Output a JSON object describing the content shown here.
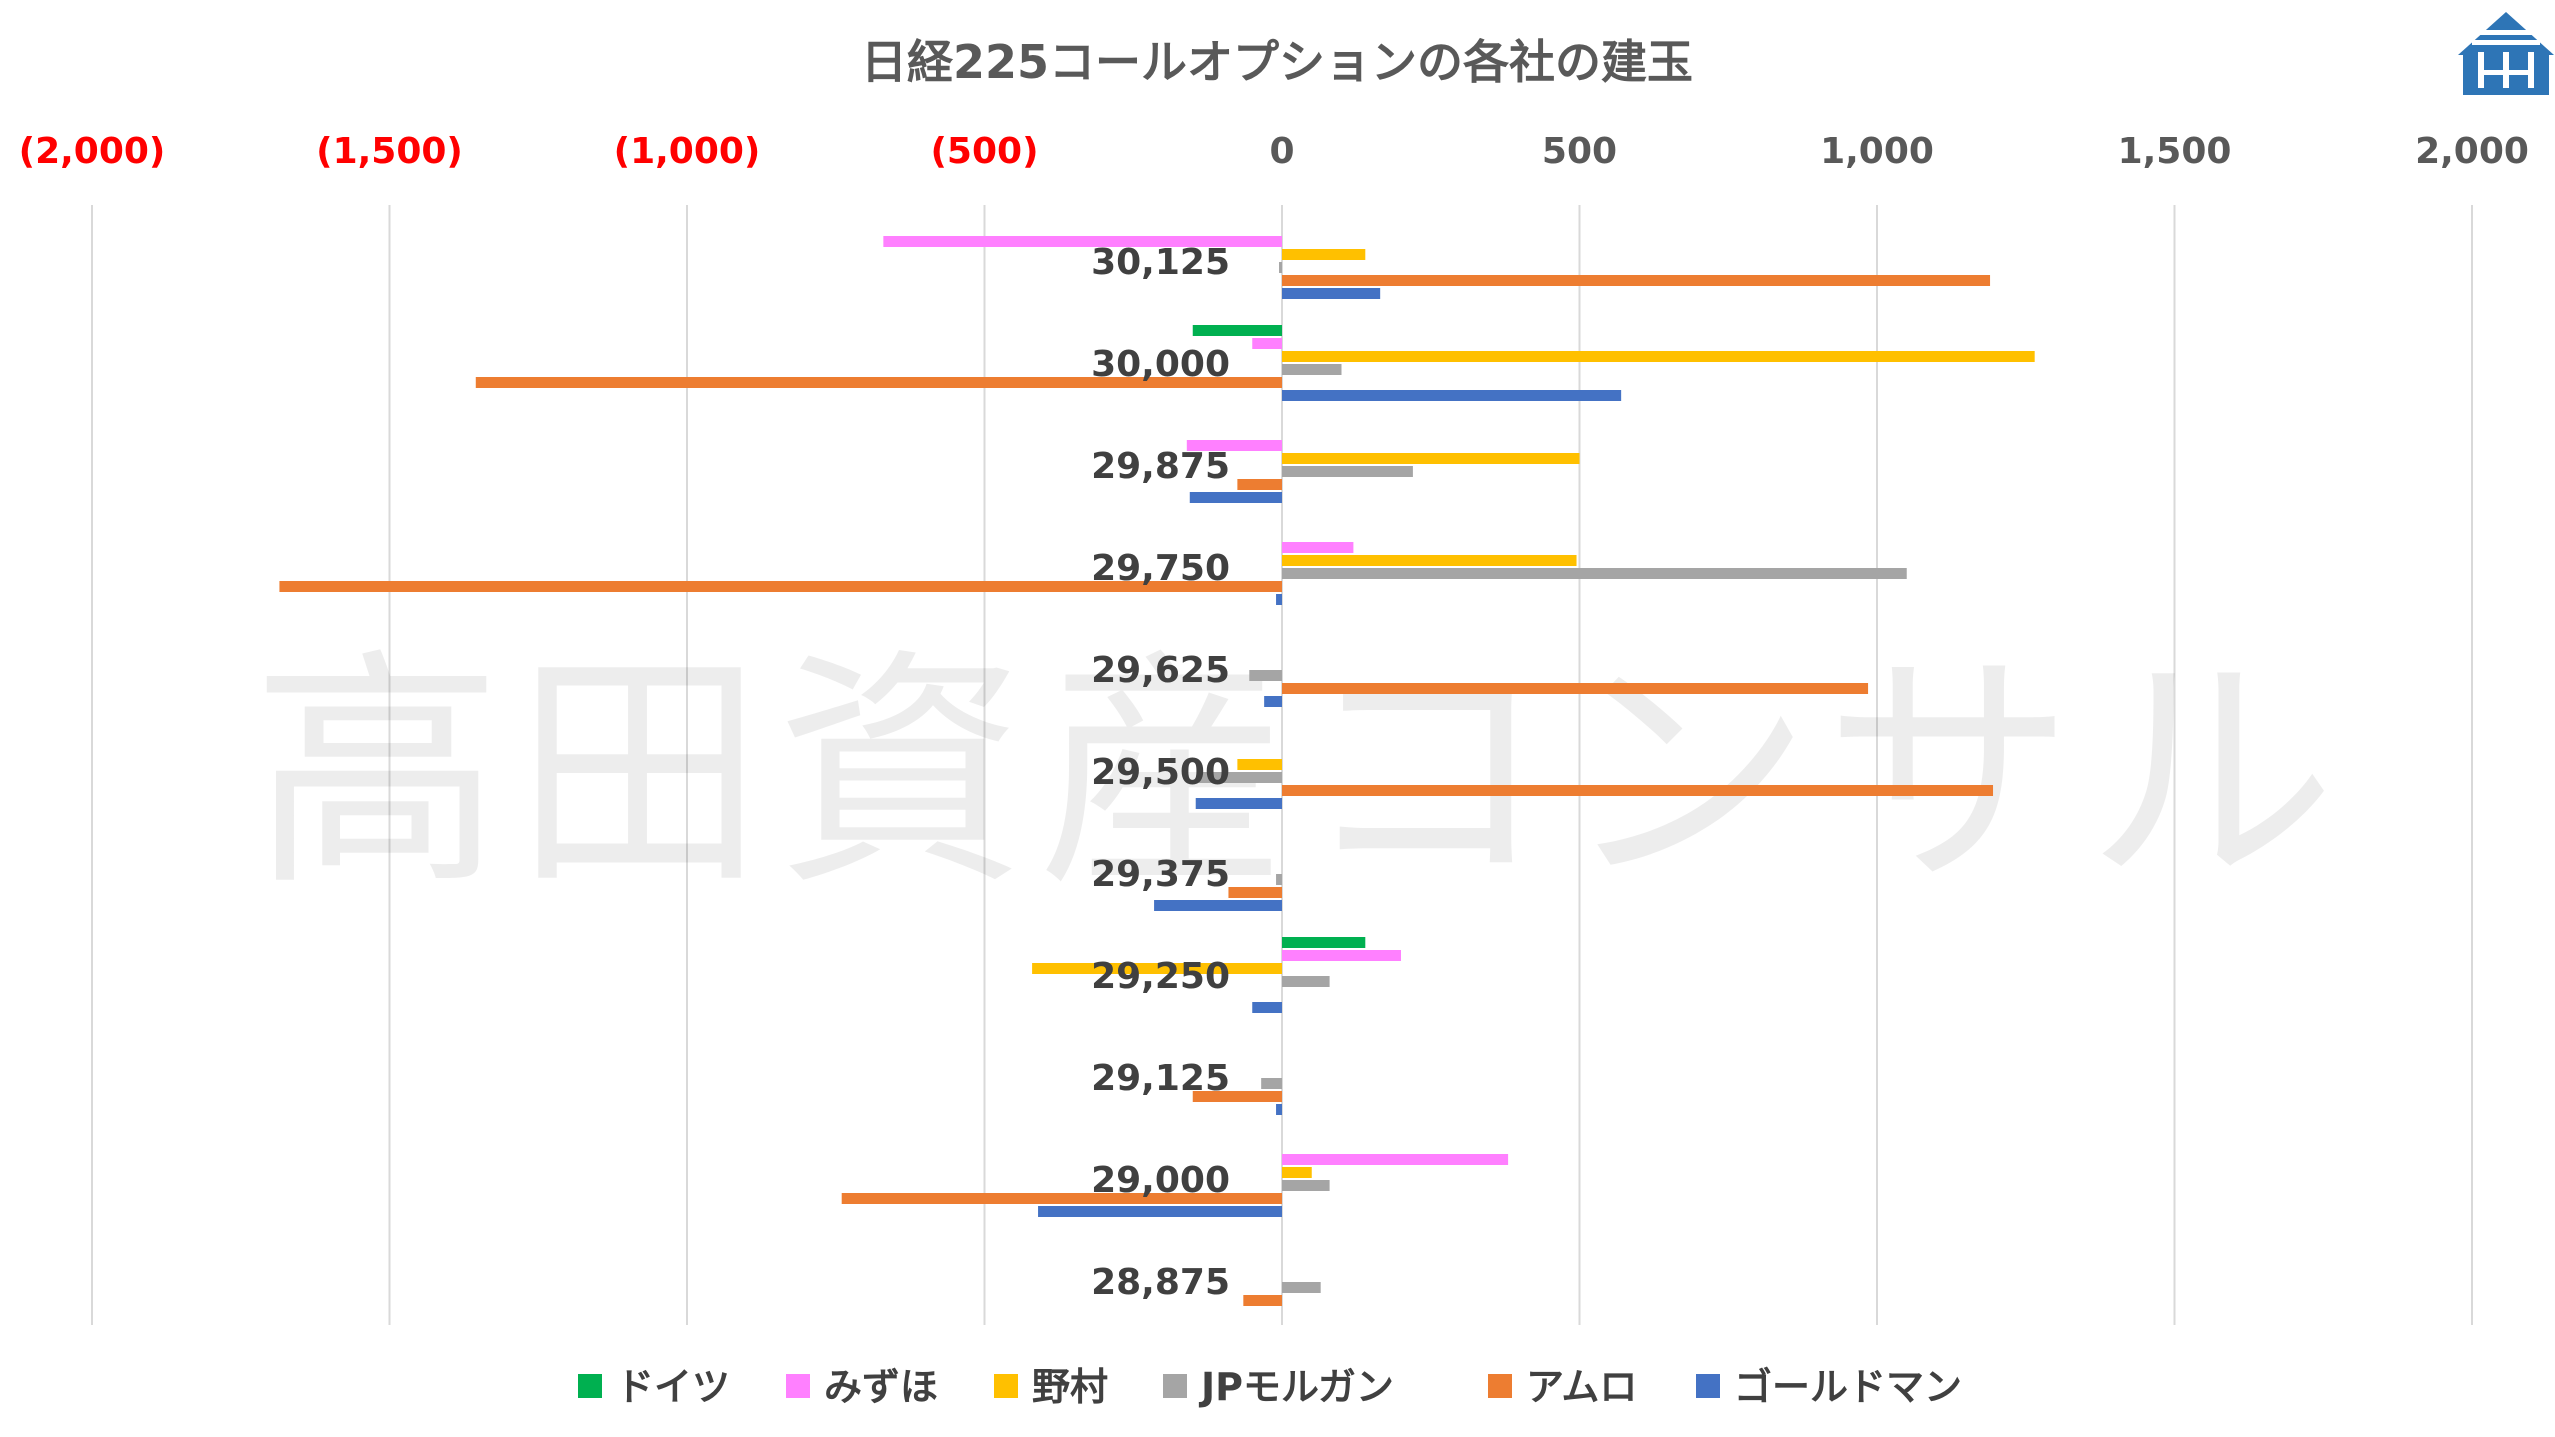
{
  "chart_data": {
    "type": "bar",
    "orientation": "horizontal",
    "title": "日経225コールオプションの各社の建玉",
    "watermark": "高田資産コンサル",
    "logo": "house-logo",
    "xlim": [
      -2000,
      2000
    ],
    "x_ticks": [
      {
        "value": -2000,
        "label": "(2,000)"
      },
      {
        "value": -1500,
        "label": "(1,500)"
      },
      {
        "value": -1000,
        "label": "(1,000)"
      },
      {
        "value": -500,
        "label": "(500)"
      },
      {
        "value": 0,
        "label": "0"
      },
      {
        "value": 500,
        "label": "500"
      },
      {
        "value": 1000,
        "label": "1,000"
      },
      {
        "value": 1500,
        "label": "1,500"
      },
      {
        "value": 2000,
        "label": "2,000"
      }
    ],
    "negative_tick_color": "#FF0000",
    "positive_tick_color": "#595959",
    "grid": true,
    "legend_position": "bottom",
    "categories": [
      "30,125",
      "30,000",
      "29,875",
      "29,750",
      "29,625",
      "29,500",
      "29,375",
      "29,250",
      "29,125",
      "29,000",
      "28,875"
    ],
    "series": [
      {
        "name": "ドイツ",
        "color": "#00B050",
        "values": [
          0,
          -150,
          0,
          0,
          0,
          0,
          0,
          140,
          0,
          0,
          0
        ]
      },
      {
        "name": "みずほ",
        "color": "#FF80FF",
        "values": [
          -670,
          -50,
          -160,
          120,
          0,
          0,
          0,
          200,
          0,
          380,
          0
        ]
      },
      {
        "name": "野村",
        "color": "#FFC000",
        "values": [
          140,
          1265,
          500,
          495,
          0,
          -75,
          0,
          -420,
          0,
          50,
          0
        ]
      },
      {
        "name": "JPモルガン",
        "color": "#A5A5A5",
        "values": [
          -5,
          100,
          220,
          1050,
          -55,
          -140,
          -10,
          80,
          -35,
          80,
          65
        ]
      },
      {
        "name": "アムロ",
        "color": "#ED7D31",
        "values": [
          1190,
          -1355,
          -75,
          -1685,
          985,
          1195,
          -90,
          0,
          -150,
          -740,
          -65
        ]
      },
      {
        "name": "ゴールドマン",
        "color": "#4472C4",
        "values": [
          165,
          570,
          -155,
          -10,
          -30,
          -145,
          -215,
          -50,
          -10,
          -410,
          0
        ]
      }
    ]
  }
}
